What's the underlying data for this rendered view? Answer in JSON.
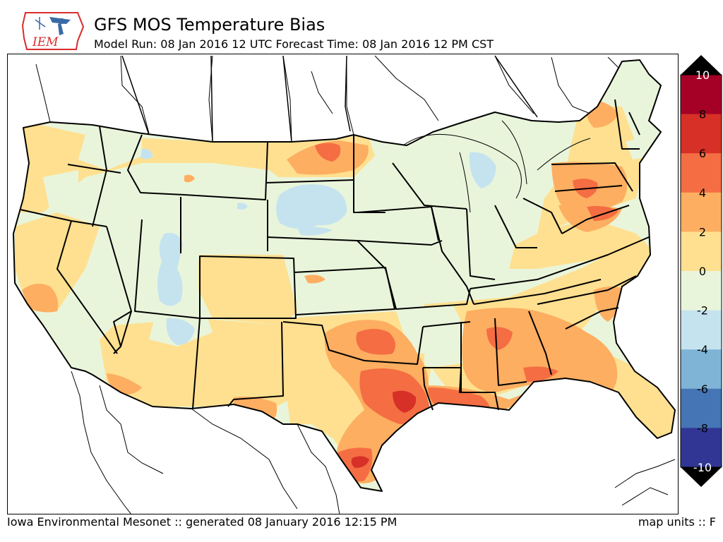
{
  "header": {
    "logo_text": "IEM",
    "title": "GFS MOS Temperature Bias",
    "subtitle": "Model Run: 08 Jan 2016 12 UTC Forecast Time: 08 Jan 2016 12 PM CST"
  },
  "footer": {
    "left": "Iowa Environmental Mesonet :: generated 08 January 2016 12:15 PM",
    "right": "map units :: F"
  },
  "colorbar": {
    "ticks": [
      "10",
      "8",
      "6",
      "4",
      "2",
      "0",
      "-2",
      "-4",
      "-6",
      "-8",
      "-10"
    ],
    "bins": [
      {
        "range": [
          8,
          10
        ],
        "color": "#a50026"
      },
      {
        "range": [
          6,
          8
        ],
        "color": "#d73027"
      },
      {
        "range": [
          4,
          6
        ],
        "color": "#f46d43"
      },
      {
        "range": [
          2,
          4
        ],
        "color": "#fdae61"
      },
      {
        "range": [
          0,
          2
        ],
        "color": "#fee090"
      },
      {
        "range": [
          -2,
          0
        ],
        "color": "#e9f5db"
      },
      {
        "range": [
          -4,
          -2
        ],
        "color": "#c5e3ef"
      },
      {
        "range": [
          -6,
          -4
        ],
        "color": "#7fb4d6"
      },
      {
        "range": [
          -8,
          -6
        ],
        "color": "#4575b4"
      },
      {
        "range": [
          -10,
          -8
        ],
        "color": "#313695"
      }
    ],
    "over_color": "#000000",
    "under_color": "#000000"
  },
  "colors": {
    "land_base": "#e9f5db",
    "ocean": "#ffffff",
    "state_line": "#000000",
    "logo_red": "#d92b2b",
    "logo_blue": "#3a6aa6"
  }
}
